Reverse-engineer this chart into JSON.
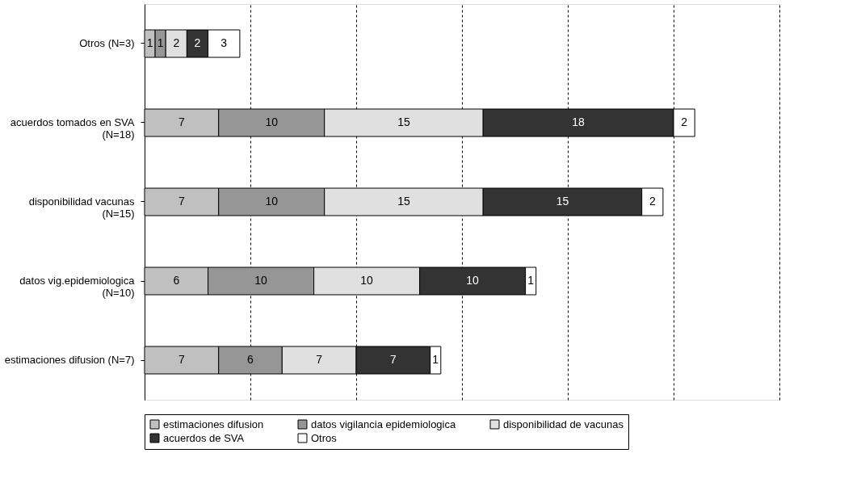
{
  "chart_data": {
    "type": "bar",
    "orientation": "horizontal",
    "stacked": true,
    "data_labels": true,
    "categories": [
      "Otros (N=3)",
      "acuerdos tomados en SVA\n(N=18)",
      "disponibilidad vacunas\n(N=15)",
      "datos vig.epidemiologica\n(N=10)",
      "estimaciones difusion (N=7)"
    ],
    "series": [
      {
        "name": "estimaciones difusion",
        "color": "#c0c0c0",
        "values": [
          1,
          7,
          7,
          6,
          7
        ]
      },
      {
        "name": "datos vigilancia epidemiologica",
        "color": "#969696",
        "values": [
          1,
          10,
          10,
          10,
          6
        ]
      },
      {
        "name": "disponibilidad de vacunas",
        "color": "#e0e0e0",
        "values": [
          2,
          15,
          15,
          10,
          7
        ]
      },
      {
        "name": "acuerdos de SVA",
        "color": "#333333",
        "values": [
          2,
          18,
          15,
          10,
          7
        ]
      },
      {
        "name": "Otros",
        "color": "#ffffff",
        "values": [
          3,
          2,
          2,
          1,
          1
        ]
      }
    ],
    "xlim": [
      0,
      60
    ],
    "xticks": [
      0,
      10,
      20,
      30,
      40,
      50,
      60
    ],
    "tick_labels": "y",
    "grid": "x",
    "legend": "bottom"
  }
}
